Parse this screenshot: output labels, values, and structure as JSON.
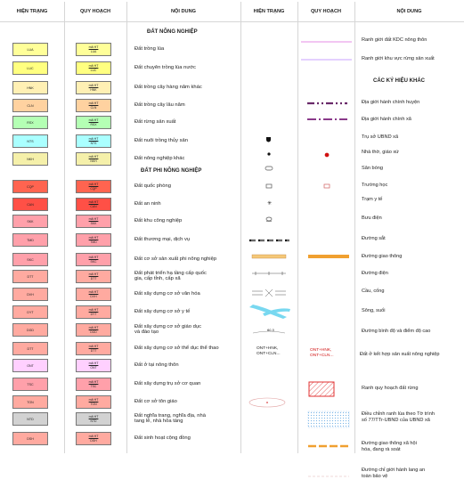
{
  "headers": {
    "hien_trang_left": "HIỆN TRẠNG",
    "quy_hoach_left": "QUY HOẠCH",
    "noi_dung_left": "NỘI DUNG",
    "hien_trang_right": "HIỆN TRẠNG",
    "quy_hoach_right": "QUY HOẠCH",
    "noi_dung_right": "NỘI DUNG"
  },
  "sections": {
    "nong_nghiep": "ĐẤT NÔNG NGHIỆP",
    "phi_nong_nghiep": "ĐẤT PHI NÔNG NGHIỆP",
    "ky_hieu_khac": "CÁC KÝ HIỆU KHÁC"
  },
  "qh_prefix": "mã HT",
  "land_rows": [
    {
      "code": "LUA",
      "color": "#ffff99",
      "label": "Đất trồng lúa"
    },
    {
      "code": "LUC",
      "color": "#ffff80",
      "label": "Đất chuyên trồng lúa nước"
    },
    {
      "code": "HNK",
      "color": "#fff0b4",
      "label": "Đất trồng cây hàng năm khác"
    },
    {
      "code": "CLN",
      "color": "#ffd2a0",
      "label": "Đất trồng cây lâu năm"
    },
    {
      "code": "RSX",
      "color": "#b4ffb4",
      "label": "Đất rừng sản xuất"
    },
    {
      "code": "NTS",
      "color": "#aaffff",
      "label": "Đất nuôi trồng thủy sản"
    },
    {
      "code": "NKH",
      "color": "#f5f0aa",
      "label": "Đất nông nghiệp khác"
    },
    {
      "code": "CQP",
      "color": "#ff6450",
      "label": "Đất quốc phòng"
    },
    {
      "code": "CAN",
      "color": "#ff5046",
      "label": "Đất an ninh"
    },
    {
      "code": "SKK",
      "color": "#ffa0aa",
      "label": "Đất khu công nghiệp"
    },
    {
      "code": "TMD",
      "color": "#ffa0aa",
      "label": "Đất thương mại, dịch vụ"
    },
    {
      "code": "SKC",
      "color": "#ffa0aa",
      "label": "Đất cơ sở sản xuất phi nông nghiệp"
    },
    {
      "code": "DTT",
      "color": "#ffaaa0",
      "label": "Đất phát triển hạ tầng cấp quốc\ngia, cấp tỉnh, cấp xã"
    },
    {
      "code": "DVH",
      "color": "#ffaaa0",
      "label": "Đất xây dựng cơ sở văn hóa"
    },
    {
      "code": "DYT",
      "color": "#ffaaa0",
      "label": "Đất xây dựng cơ sở y tế"
    },
    {
      "code": "DGD",
      "color": "#ffaaa0",
      "label": "Đất xây dựng cơ sở giáo dục\nvà đào tạo"
    },
    {
      "code": "DTT",
      "color": "#ffaaa0",
      "label": "Đất xây dựng cơ sở thể dục thể thao"
    },
    {
      "code": "ONT",
      "color": "#ffd0ff",
      "label": "Đất ở tại nông thôn"
    },
    {
      "code": "TSC",
      "color": "#ffa0aa",
      "label": "Đất xây dựng trụ sở cơ quan"
    },
    {
      "code": "TON",
      "color": "#ffaaa0",
      "label": "Đất cơ sở tôn giáo"
    },
    {
      "code": "NTD",
      "color": "#d2d2d2",
      "label": "Đất nghĩa trang, nghĩa địa, nhà\ntang lễ, nhà hỏa táng"
    },
    {
      "code": "DSH",
      "color": "#ffaaa0",
      "label": "Đất sinh hoạt cộng đồng"
    }
  ],
  "right_rows": [
    {
      "label": "Ranh giới đất KDC nông thôn"
    },
    {
      "label": "Ranh giới khu vực rừng sản xuất"
    },
    {
      "label": "Địa giới hành chính huyện"
    },
    {
      "label": "Địa giới hành chính xã"
    },
    {
      "label": "Trụ sở UBND xã"
    },
    {
      "label": "Nhà thờ, giáo xứ"
    },
    {
      "label": "Sân bóng"
    },
    {
      "label": "Trường học"
    },
    {
      "label": "Trạm y tế"
    },
    {
      "label": "Bưu điện"
    },
    {
      "label": "Đường sắt"
    },
    {
      "label": "Đường giao thông"
    },
    {
      "label": "Đường điện"
    },
    {
      "label": "Cầu, cống"
    },
    {
      "label": "Sông, suối"
    },
    {
      "label": "Đường bình độ và điểm độ cao"
    },
    {
      "label": "Đất ở kết hợp sản xuất nông nghiệp"
    },
    {
      "label": "Ranh quy hoạch đất rừng"
    },
    {
      "label": "Điều chỉnh ranh lúa theo Tờ trình\nsố 77/TTr-UBND của UBND xã"
    },
    {
      "label": "Đường giao thông xã hội\nhóa, đang rà soát"
    },
    {
      "label": "Đường chỉ giới hành lang an\ntoàn bảo vệ"
    }
  ],
  "mixed_ht": "ONT+HNK,\nONT+CLN...",
  "mixed_qh": "ONT+HNK,\nONT+CLN...",
  "elevation_label": "60.5",
  "colors": {
    "grid": "#d6d6d6",
    "kdc_boundary": "#e68ce6",
    "forest_boundary": "#c8a0ff",
    "district_boundary": "#6a2a6a",
    "commune_boundary": "#8a3a8a",
    "road_orange": "#f0a030",
    "river": "#78d8f0",
    "forest_hatch": "#e03030",
    "rice_adjust": "#78b4e6",
    "red_text": "#d01010"
  }
}
